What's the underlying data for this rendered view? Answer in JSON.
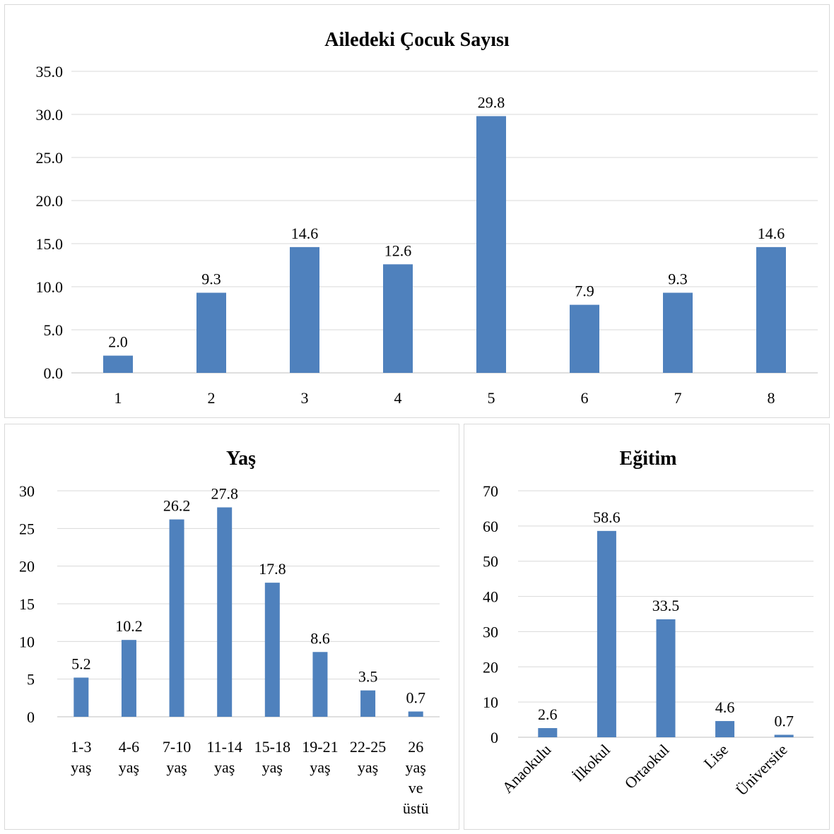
{
  "chart_data": [
    {
      "type": "bar",
      "title": "Ailedeki Çocuk Sayısı",
      "categories": [
        [
          "1"
        ],
        [
          "2"
        ],
        [
          "3"
        ],
        [
          "4"
        ],
        [
          "5"
        ],
        [
          "6"
        ],
        [
          "7"
        ],
        [
          "8"
        ]
      ],
      "values": [
        2.0,
        9.3,
        14.6,
        12.6,
        29.8,
        7.9,
        9.3,
        14.6
      ],
      "data_labels": [
        "2.0",
        "9.3",
        "14.6",
        "12.6",
        "29.8",
        "7.9",
        "9.3",
        "14.6"
      ],
      "y_ticks": [
        "0.0",
        "5.0",
        "10.0",
        "15.0",
        "20.0",
        "25.0",
        "30.0",
        "35.0"
      ],
      "ylim": [
        0,
        35
      ],
      "xlabel": "",
      "ylabel": "",
      "grid": true,
      "legend": "none",
      "bar_color": "#4f81bd"
    },
    {
      "type": "bar",
      "title": "Yaş",
      "categories": [
        [
          "1-3",
          "yaş"
        ],
        [
          "4-6",
          "yaş"
        ],
        [
          "7-10",
          "yaş"
        ],
        [
          "11-14",
          "yaş"
        ],
        [
          "15-18",
          "yaş"
        ],
        [
          "19-21",
          "yaş"
        ],
        [
          "22-25",
          "yaş"
        ],
        [
          "26",
          "yaş",
          "ve",
          "üstü"
        ]
      ],
      "values": [
        5.2,
        10.2,
        26.2,
        27.8,
        17.8,
        8.6,
        3.5,
        0.7
      ],
      "data_labels": [
        "5.2",
        "10.2",
        "26.2",
        "27.8",
        "17.8",
        "8.6",
        "3.5",
        "0.7"
      ],
      "y_ticks": [
        "0",
        "5",
        "10",
        "15",
        "20",
        "25",
        "30"
      ],
      "ylim": [
        0,
        30
      ],
      "xlabel": "",
      "ylabel": "",
      "grid": true,
      "legend": "none",
      "bar_color": "#4f81bd"
    },
    {
      "type": "bar",
      "title": "Eğitim",
      "categories": [
        [
          "Anaokulu"
        ],
        [
          "İlkokul"
        ],
        [
          "Ortaokul"
        ],
        [
          "Lise"
        ],
        [
          "Üniversite"
        ]
      ],
      "values": [
        2.6,
        58.6,
        33.5,
        4.6,
        0.7
      ],
      "data_labels": [
        "2.6",
        "58.6",
        "33.5",
        "4.6",
        "0.7"
      ],
      "y_ticks": [
        "0",
        "10",
        "20",
        "30",
        "40",
        "50",
        "60",
        "70"
      ],
      "ylim": [
        0,
        70
      ],
      "xlabel": "",
      "ylabel": "",
      "grid": true,
      "legend": "none",
      "x_tick_rotation": "-45deg",
      "bar_color": "#4f81bd"
    }
  ]
}
